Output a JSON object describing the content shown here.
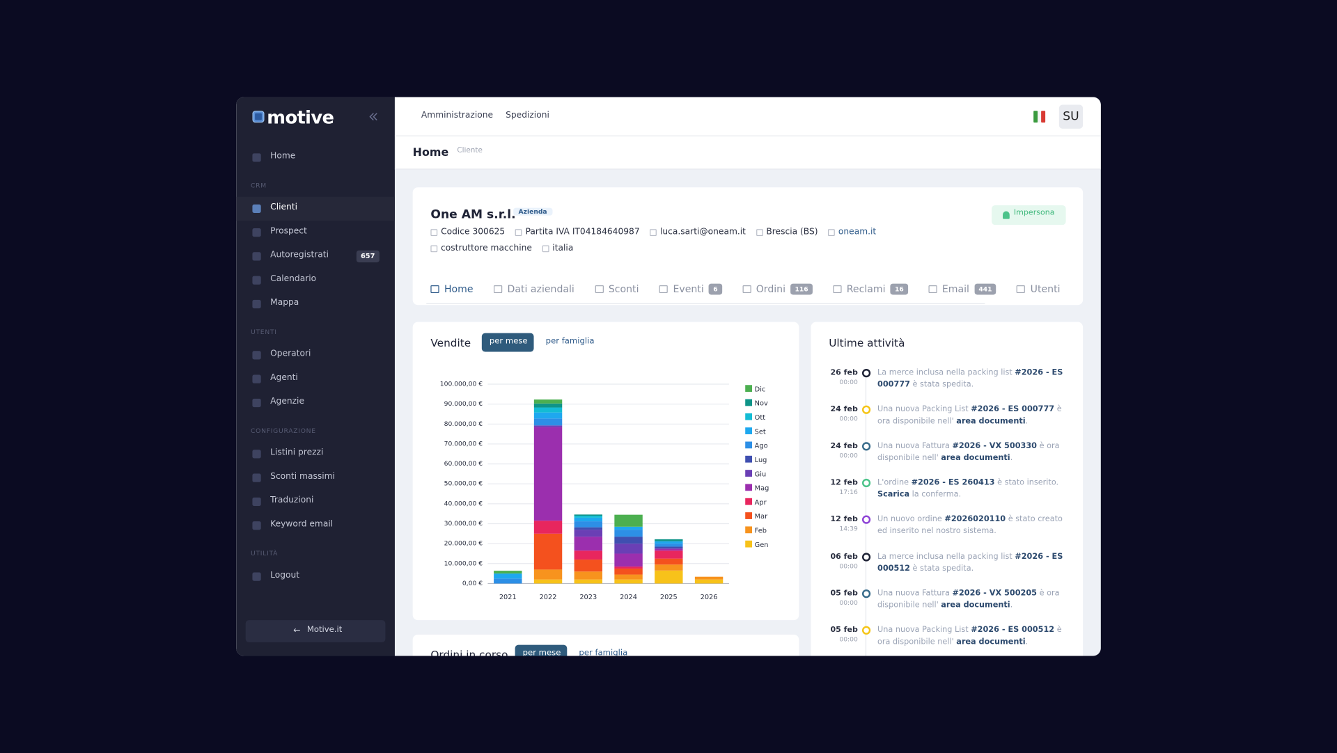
{
  "sidebar": {
    "brand": "motive",
    "sections": [
      {
        "items": [
          {
            "label": "Home"
          }
        ]
      },
      {
        "title": "CRM",
        "items": [
          {
            "label": "Clienti",
            "active": true
          },
          {
            "label": "Prospect"
          },
          {
            "label": "Autoregistrati",
            "badge": 657
          },
          {
            "label": "Calendario"
          },
          {
            "label": "Mappa"
          }
        ]
      },
      {
        "title": "UTENTI",
        "items": [
          {
            "label": "Operatori"
          },
          {
            "label": "Agenti"
          },
          {
            "label": "Agenzie"
          }
        ]
      },
      {
        "title": "CONFIGURAZIONE",
        "items": [
          {
            "label": "Listini prezzi"
          },
          {
            "label": "Sconti massimi"
          },
          {
            "label": "Traduzioni"
          },
          {
            "label": "Keyword email"
          }
        ]
      },
      {
        "title": "UTILITÀ",
        "items": [
          {
            "label": "Logout"
          }
        ]
      }
    ],
    "footer": "Motive.it"
  },
  "topnav": {
    "links": [
      "Amministrazione",
      "Spedizioni"
    ],
    "user": "SU"
  },
  "breadcrumb": {
    "title": "Home",
    "sub": "Cliente"
  },
  "client": {
    "name": "One AM s.r.l.",
    "tag": "Azienda",
    "action": "Impersona",
    "details": [
      [
        "Codice 300625",
        "Partita IVA IT04184640987",
        "luca.sarti@oneam.it",
        "Brescia (BS)",
        "oneam.it"
      ],
      [
        "costruttore macchine",
        "italia"
      ]
    ]
  },
  "tabs": [
    {
      "label": "Home",
      "active": true
    },
    {
      "label": "Dati aziendali"
    },
    {
      "label": "Sconti"
    },
    {
      "label": "Eventi",
      "badge": 6
    },
    {
      "label": "Ordini",
      "badge": 116
    },
    {
      "label": "Reclami",
      "badge": 16
    },
    {
      "label": "Email",
      "badge": 441
    },
    {
      "label": "Utenti"
    }
  ],
  "sales_toggles": [
    "per mese",
    "per famiglia"
  ],
  "chart_data": {
    "type": "bar",
    "stacked": true,
    "title": "Vendite",
    "categories": [
      "2021",
      "2022",
      "2023",
      "2024",
      "2025",
      "2026"
    ],
    "series": [
      {
        "name": "Gen",
        "color": "#f7c21a",
        "values": [
          0,
          2000,
          2000,
          2000,
          6500,
          2000
        ]
      },
      {
        "name": "Feb",
        "color": "#f7931e",
        "values": [
          0,
          5000,
          4000,
          2500,
          3000,
          1400
        ]
      },
      {
        "name": "Mar",
        "color": "#f4511e",
        "values": [
          0,
          18000,
          6000,
          3000,
          3000,
          0
        ]
      },
      {
        "name": "Apr",
        "color": "#e8265e",
        "values": [
          0,
          6500,
          4500,
          1000,
          4000,
          0
        ]
      },
      {
        "name": "Mag",
        "color": "#9b2fae",
        "values": [
          0,
          47000,
          7000,
          6500,
          1000,
          0
        ]
      },
      {
        "name": "Giu",
        "color": "#6a3fb5",
        "values": [
          0,
          800,
          3500,
          5000,
          0,
          0
        ]
      },
      {
        "name": "Lug",
        "color": "#3f4fb0",
        "values": [
          0,
          0,
          1200,
          3500,
          1000,
          0
        ]
      },
      {
        "name": "Ago",
        "color": "#2d8fe6",
        "values": [
          2500,
          3500,
          3000,
          3500,
          1500,
          0
        ]
      },
      {
        "name": "Set",
        "color": "#1ea8ef",
        "values": [
          2500,
          3000,
          1800,
          1500,
          1200,
          0
        ]
      },
      {
        "name": "Ott",
        "color": "#14bcd4",
        "values": [
          0,
          2500,
          1000,
          0,
          0,
          0
        ]
      },
      {
        "name": "Nov",
        "color": "#0f9488",
        "values": [
          0,
          2000,
          600,
          0,
          1000,
          0
        ]
      },
      {
        "name": "Dic",
        "color": "#4caf50",
        "values": [
          1400,
          2000,
          0,
          6000,
          0,
          0
        ]
      }
    ],
    "ylim": [
      0,
      100000
    ],
    "yticks": [
      {
        "value": 0,
        "label": "0,00 €"
      },
      {
        "value": 10000,
        "label": "10.000,00 €"
      },
      {
        "value": 20000,
        "label": "20.000,00 €"
      },
      {
        "value": 30000,
        "label": "30.000,00 €"
      },
      {
        "value": 40000,
        "label": "40.000,00 €"
      },
      {
        "value": 50000,
        "label": "50.000,00 €"
      },
      {
        "value": 60000,
        "label": "60.000,00 €"
      },
      {
        "value": 70000,
        "label": "70.000,00 €"
      },
      {
        "value": 80000,
        "label": "80.000,00 €"
      },
      {
        "value": 90000,
        "label": "90.000,00 €"
      },
      {
        "value": 100000,
        "label": "100.000,00 €"
      }
    ],
    "grid": true,
    "legend": "right"
  },
  "orders_panel": {
    "title": "Ordini in corso",
    "toggles": [
      "per mese",
      "per famiglia"
    ]
  },
  "activities": {
    "title": "Ultime attività",
    "items": [
      {
        "date": "26 feb",
        "time": "00:00",
        "color": "#1e2235",
        "parts": [
          {
            "text": "La merce inclusa nella packing list "
          },
          {
            "text": "#2026 - ES 000777",
            "bold": true
          },
          {
            "text": " è stata spedita."
          }
        ]
      },
      {
        "date": "24 feb",
        "time": "00:00",
        "color": "#f5c518",
        "parts": [
          {
            "text": "Una nuova Packing List "
          },
          {
            "text": "#2026 - ES 000777",
            "bold": true
          },
          {
            "text": " è ora disponibile nell' "
          },
          {
            "text": "area documenti",
            "bold": true
          },
          {
            "text": "."
          }
        ]
      },
      {
        "date": "24 feb",
        "time": "00:00",
        "color": "#3a6d8c",
        "parts": [
          {
            "text": "Una nuova Fattura "
          },
          {
            "text": "#2026 - VX 500330",
            "bold": true
          },
          {
            "text": " è ora disponibile nell' "
          },
          {
            "text": "area documenti",
            "bold": true
          },
          {
            "text": "."
          }
        ]
      },
      {
        "date": "12 feb",
        "time": "17:16",
        "color": "#4cc38a",
        "parts": [
          {
            "text": "L'ordine "
          },
          {
            "text": "#2026 - ES 260413",
            "bold": true
          },
          {
            "text": " è stato inserito. "
          },
          {
            "text": "Scarica",
            "bold": true
          },
          {
            "text": " la conferma."
          }
        ]
      },
      {
        "date": "12 feb",
        "time": "14:39",
        "color": "#8e44d6",
        "parts": [
          {
            "text": "Un nuovo ordine "
          },
          {
            "text": "#2026020110",
            "bold": true
          },
          {
            "text": " è stato creato ed inserito nel nostro sistema."
          }
        ]
      },
      {
        "date": "06 feb",
        "time": "00:00",
        "color": "#1e2235",
        "parts": [
          {
            "text": "La merce inclusa nella packing list "
          },
          {
            "text": "#2026 - ES 000512",
            "bold": true
          },
          {
            "text": " è stata spedita."
          }
        ]
      },
      {
        "date": "05 feb",
        "time": "00:00",
        "color": "#3a6d8c",
        "parts": [
          {
            "text": "Una nuova Fattura "
          },
          {
            "text": "#2026 - VX 500205",
            "bold": true
          },
          {
            "text": " è ora disponibile nell' "
          },
          {
            "text": "area documenti",
            "bold": true
          },
          {
            "text": "."
          }
        ]
      },
      {
        "date": "05 feb",
        "time": "00:00",
        "color": "#f5c518",
        "parts": [
          {
            "text": "Una nuova Packing List "
          },
          {
            "text": "#2026 - ES 000512",
            "bold": true
          },
          {
            "text": " è ora disponibile nell' "
          },
          {
            "text": "area documenti",
            "bold": true
          },
          {
            "text": "."
          }
        ]
      }
    ]
  }
}
